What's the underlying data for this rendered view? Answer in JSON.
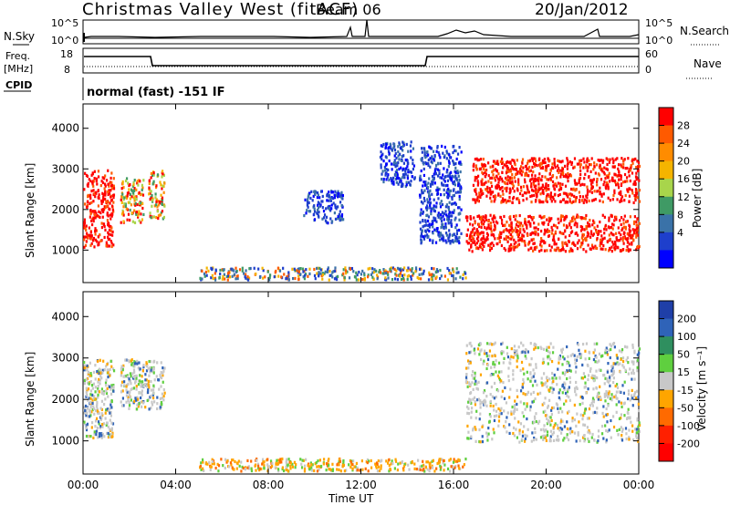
{
  "header": {
    "station": "Christmas Valley West (fitACF)",
    "beam": "Beam 06",
    "date": "20/Jan/2012"
  },
  "status_panels": {
    "nsky_label": "N.Sky",
    "nsky_ticks": [
      "10^5",
      "10^0"
    ],
    "nsearch_label": "N.Search",
    "nsearch_ticks": [
      "10^5",
      "10^0"
    ],
    "freq_label": "Freq.",
    "freq_unit": "[MHz]",
    "freq_ticks": [
      18,
      8
    ],
    "nave_label": "Nave",
    "nave_ticks": [
      60,
      0
    ],
    "cpid_label": "CPID",
    "cpid_text": "normal (fast) -151 IF"
  },
  "chart_data": [
    {
      "type": "heatmap",
      "name": "power",
      "ylabel": "Slant Range [km]",
      "yticks": [
        1000,
        2000,
        3000,
        4000
      ],
      "ylim": [
        200,
        4600
      ],
      "xlim_hours": [
        0,
        24
      ],
      "colorbar": {
        "label": "Power [dB]",
        "ticks": [
          "28",
          "24",
          "20",
          "16",
          "12",
          "8",
          "4"
        ],
        "colors": [
          "#ff0000",
          "#ff5a00",
          "#ff8c00",
          "#f5b400",
          "#a8d54b",
          "#3f9a65",
          "#3a72a8",
          "#1e3fcc",
          "#0000ff"
        ]
      },
      "regions": [
        {
          "t0": 0.0,
          "t1": 1.3,
          "r0": 1100,
          "r1": 3000,
          "value": "high"
        },
        {
          "t0": 1.6,
          "t1": 2.6,
          "r0": 1700,
          "r1": 2800,
          "value": "mixed"
        },
        {
          "t0": 2.8,
          "t1": 3.5,
          "r0": 1800,
          "r1": 3000,
          "value": "mixed"
        },
        {
          "t0": 5.0,
          "t1": 16.5,
          "r0": 300,
          "r1": 600,
          "value": "ground"
        },
        {
          "t0": 9.5,
          "t1": 11.2,
          "r0": 1700,
          "r1": 2500,
          "value": "low"
        },
        {
          "t0": 12.8,
          "t1": 14.3,
          "r0": 2600,
          "r1": 3700,
          "value": "low"
        },
        {
          "t0": 14.5,
          "t1": 16.3,
          "r0": 1200,
          "r1": 3600,
          "value": "low"
        },
        {
          "t0": 16.5,
          "t1": 24.0,
          "r0": 1000,
          "r1": 1900,
          "value": "high"
        },
        {
          "t0": 16.8,
          "t1": 24.0,
          "r0": 2200,
          "r1": 3300,
          "value": "high"
        }
      ]
    },
    {
      "type": "heatmap",
      "name": "velocity",
      "ylabel": "Slant Range [km]",
      "yticks": [
        1000,
        2000,
        3000,
        4000
      ],
      "ylim": [
        200,
        4600
      ],
      "xlim_hours": [
        0,
        24
      ],
      "xticks": [
        "00:00",
        "04:00",
        "08:00",
        "12:00",
        "16:00",
        "20:00",
        "00:00"
      ],
      "xlabel": "Time UT",
      "colorbar": {
        "label": "Velocity [m s⁻¹]",
        "ticks": [
          "200",
          "100",
          "50",
          "15",
          "-15",
          "-50",
          "-100",
          "-200"
        ],
        "colors": [
          "#1f3fa8",
          "#2f63b8",
          "#2f8f5f",
          "#5fcf3f",
          "#c8c8c8",
          "#ffa500",
          "#ff6a00",
          "#ff2000",
          "#ff0000"
        ]
      },
      "regions": [
        {
          "t0": 0.0,
          "t1": 1.3,
          "r0": 1100,
          "r1": 3000,
          "value": "near-zero"
        },
        {
          "t0": 1.6,
          "t1": 3.5,
          "r0": 1800,
          "r1": 3000,
          "value": "near-zero"
        },
        {
          "t0": 5.0,
          "t1": 16.5,
          "r0": 300,
          "r1": 600,
          "value": "negative"
        },
        {
          "t0": 16.5,
          "t1": 24.0,
          "r0": 1000,
          "r1": 3400,
          "value": "near-zero"
        }
      ]
    }
  ]
}
